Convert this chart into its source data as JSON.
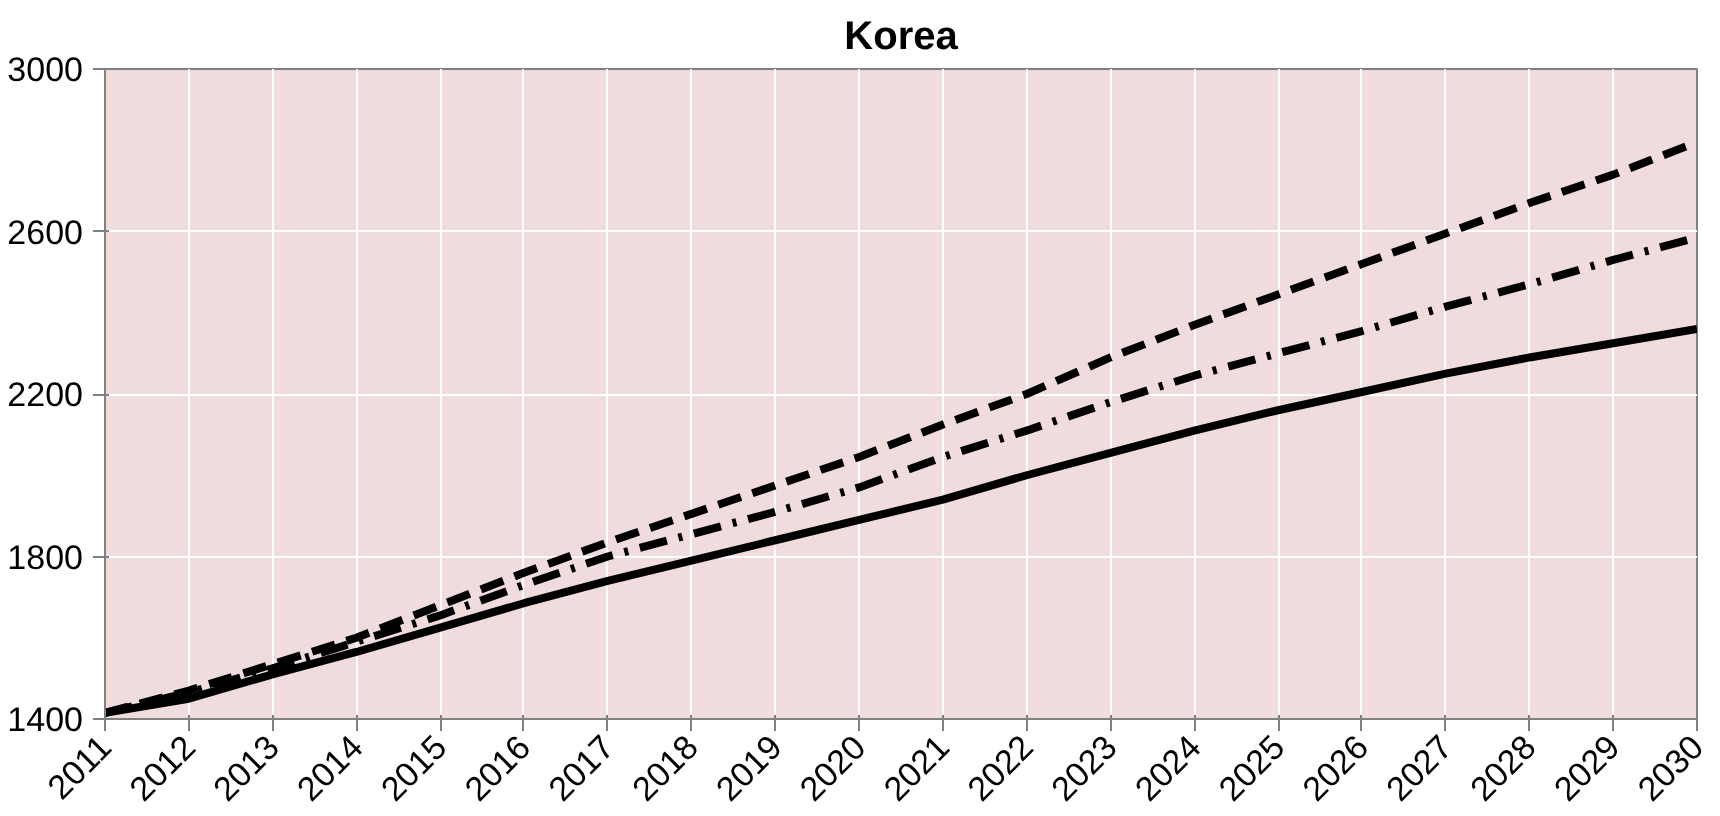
{
  "chart_data": {
    "type": "line",
    "title": "Korea",
    "x": [
      2011,
      2012,
      2013,
      2014,
      2015,
      2016,
      2017,
      2018,
      2019,
      2020,
      2021,
      2022,
      2023,
      2024,
      2025,
      2026,
      2027,
      2028,
      2029,
      2030
    ],
    "series": [
      {
        "color": "#000000",
        "line_style": "dashed",
        "values": [
          1415,
          1470,
          1535,
          1600,
          1680,
          1760,
          1835,
          1905,
          1975,
          2045,
          2125,
          2200,
          2290,
          2370,
          2445,
          2520,
          2595,
          2670,
          2740,
          2820
        ]
      },
      {
        "color": "#000000",
        "line_style": "dashdot",
        "values": [
          1415,
          1465,
          1525,
          1590,
          1655,
          1730,
          1800,
          1855,
          1910,
          1970,
          2045,
          2110,
          2180,
          2245,
          2300,
          2355,
          2415,
          2470,
          2530,
          2585
        ]
      },
      {
        "color": "#000000",
        "line_style": "solid",
        "values": [
          1415,
          1450,
          1510,
          1565,
          1625,
          1685,
          1740,
          1790,
          1840,
          1890,
          1940,
          2000,
          2055,
          2110,
          2160,
          2205,
          2250,
          2290,
          2325,
          2360
        ]
      }
    ],
    "xlim": [
      2011,
      2030
    ],
    "ylim": [
      1400,
      3000
    ],
    "xticks": [
      2011,
      2012,
      2013,
      2014,
      2015,
      2016,
      2017,
      2018,
      2019,
      2020,
      2021,
      2022,
      2023,
      2024,
      2025,
      2026,
      2027,
      2028,
      2029,
      2030
    ],
    "yticks": [
      1400,
      1800,
      2200,
      2600,
      3000
    ],
    "grid": true,
    "marker": "none"
  }
}
